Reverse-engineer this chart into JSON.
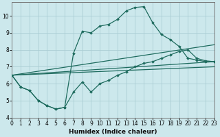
{
  "xlabel": "Humidex (Indice chaleur)",
  "bg_color": "#cce8ec",
  "grid_color": "#aacdd4",
  "line_color": "#1e6b5e",
  "series": {
    "upper_curve": {
      "x": [
        0,
        1,
        2,
        3,
        4,
        5,
        6,
        7,
        8,
        9,
        10,
        11,
        12,
        13,
        14,
        15,
        16,
        17,
        18,
        19,
        20,
        21,
        22,
        23
      ],
      "y": [
        6.5,
        5.8,
        5.6,
        5.0,
        4.7,
        4.5,
        4.6,
        7.8,
        9.1,
        9.0,
        9.4,
        9.5,
        9.8,
        10.3,
        10.5,
        10.55,
        9.6,
        8.9,
        8.6,
        8.2,
        7.5,
        7.4,
        7.3,
        7.3
      ]
    },
    "lower_curve": {
      "x": [
        0,
        1,
        2,
        3,
        4,
        5,
        6,
        7,
        8,
        9,
        10,
        11,
        12,
        13,
        14,
        15,
        16,
        17,
        18,
        19,
        20,
        21,
        22,
        23
      ],
      "y": [
        6.5,
        5.8,
        5.6,
        5.0,
        4.7,
        4.5,
        4.6,
        5.5,
        6.1,
        5.5,
        6.0,
        6.2,
        6.5,
        6.7,
        7.0,
        7.2,
        7.3,
        7.5,
        7.7,
        7.9,
        8.0,
        7.5,
        7.35,
        7.3
      ]
    },
    "straight_upper": {
      "x": [
        0,
        23
      ],
      "y": [
        6.5,
        8.3
      ]
    },
    "straight_mid": {
      "x": [
        0,
        23
      ],
      "y": [
        6.5,
        7.3
      ]
    },
    "straight_lower": {
      "x": [
        0,
        23
      ],
      "y": [
        6.5,
        7.0
      ]
    }
  },
  "xlim": [
    0,
    23
  ],
  "ylim": [
    4.0,
    10.8
  ],
  "yticks": [
    4,
    5,
    6,
    7,
    8,
    9,
    10
  ],
  "xticks": [
    0,
    1,
    2,
    3,
    4,
    5,
    6,
    7,
    8,
    9,
    10,
    11,
    12,
    13,
    14,
    15,
    16,
    17,
    18,
    19,
    20,
    21,
    22,
    23
  ],
  "tick_fontsize": 5.5,
  "xlabel_fontsize": 6.5
}
